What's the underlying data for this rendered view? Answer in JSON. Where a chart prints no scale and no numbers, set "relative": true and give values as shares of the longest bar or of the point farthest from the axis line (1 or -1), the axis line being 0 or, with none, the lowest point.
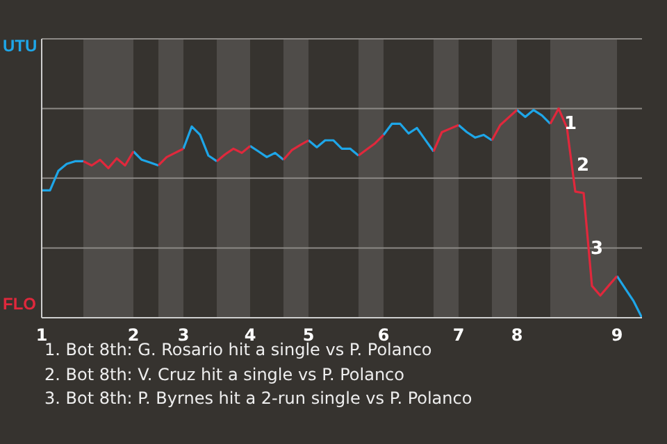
{
  "chart_data": {
    "type": "line",
    "relative": true,
    "categories": [
      "1",
      null,
      null,
      null,
      null,
      null,
      null,
      null,
      null,
      null,
      null,
      "2",
      null,
      null,
      null,
      null,
      null,
      "3",
      null,
      null,
      null,
      null,
      null,
      null,
      null,
      "4",
      null,
      null,
      null,
      null,
      null,
      null,
      "5",
      null,
      null,
      null,
      null,
      null,
      null,
      null,
      null,
      "6",
      null,
      null,
      null,
      null,
      null,
      null,
      null,
      null,
      "7",
      null,
      null,
      null,
      null,
      null,
      null,
      "8",
      null,
      null,
      null,
      null,
      null,
      null,
      null,
      null,
      null,
      null,
      null,
      "9",
      null,
      null,
      null
    ],
    "series": [
      {
        "color": "#1ea6e8",
        "values": [
          0.609,
          0.609,
          0.702,
          0.735,
          0.748,
          0.748,
          null,
          null,
          null,
          null,
          null,
          0.795,
          0.755,
          0.742,
          0.728,
          null,
          null,
          0.808,
          0.914,
          0.874,
          0.775,
          0.748,
          null,
          null,
          null,
          0.821,
          0.795,
          0.768,
          0.788,
          0.755,
          null,
          null,
          0.848,
          0.815,
          0.848,
          0.848,
          0.808,
          0.808,
          0.775,
          null,
          null,
          0.874,
          0.927,
          0.927,
          0.881,
          0.907,
          0.851,
          0.795,
          null,
          null,
          0.921,
          0.887,
          0.861,
          0.874,
          0.848,
          null,
          null,
          0.993,
          0.96,
          0.993,
          0.967,
          0.927,
          null,
          null,
          null,
          null,
          null,
          null,
          null,
          0.199,
          0.139,
          0.079,
          0
        ]
      },
      {
        "color": "#e0283c",
        "values": [
          null,
          null,
          null,
          null,
          null,
          0.748,
          0.728,
          0.755,
          0.715,
          0.762,
          0.728,
          0.795,
          null,
          null,
          0.728,
          0.768,
          0.788,
          0.808,
          null,
          null,
          null,
          0.748,
          0.781,
          0.808,
          0.788,
          0.821,
          null,
          null,
          null,
          0.755,
          0.801,
          0.825,
          0.848,
          null,
          null,
          null,
          null,
          null,
          0.775,
          0.805,
          0.834,
          0.874,
          null,
          null,
          null,
          null,
          null,
          0.795,
          0.887,
          0.904,
          0.921,
          null,
          null,
          null,
          0.848,
          0.921,
          0.957,
          0.993,
          null,
          null,
          null,
          0.927,
          1,
          0.907,
          0.603,
          0.596,
          0.152,
          0.106,
          0.153,
          0.199,
          null,
          null,
          null
        ]
      }
    ],
    "annotations": [
      "UTU",
      "FLO",
      "1",
      "2",
      "3",
      "1. Bot 8th: G. Rosario hit a single vs P. Polanco",
      "2. Bot 8th: V. Cruz hit a single vs P. Polanco",
      "3. Bot 8th: P. Byrnes hit a 2-run single vs P. Polanco"
    ],
    "ref_lines": [
      {
        "axis": "y",
        "value": 0.333,
        "color": "#8c8986"
      },
      {
        "axis": "y",
        "value": 0.667,
        "color": "#8c8986"
      },
      {
        "axis": "y",
        "value": 1,
        "color": "#8c8986"
      },
      {
        "axis": "y",
        "value": 1.333,
        "color": "#8c8986"
      }
    ],
    "marker": "none",
    "line_style": "solid"
  }
}
